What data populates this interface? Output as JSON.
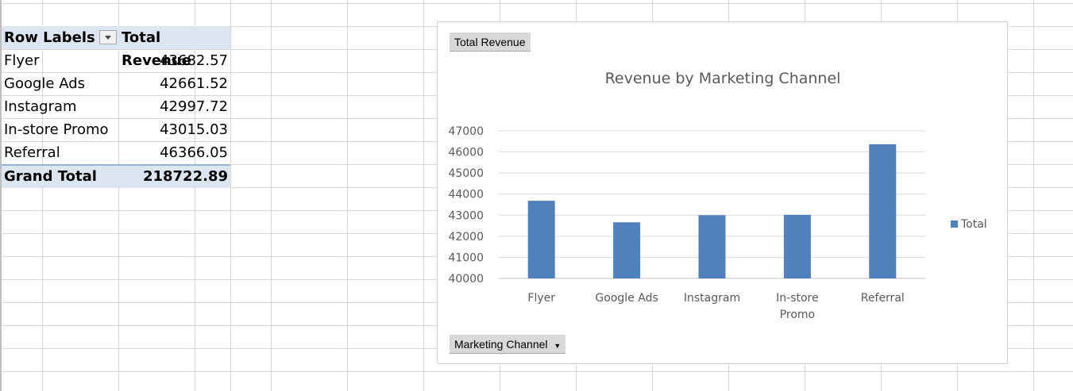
{
  "pivot": {
    "header": {
      "row_labels": "Row Labels",
      "value_header": "Total Revenue"
    },
    "rows": [
      {
        "label": "Flyer",
        "value": "43682.57"
      },
      {
        "label": "Google Ads",
        "value": "42661.52"
      },
      {
        "label": "Instagram",
        "value": "42997.72"
      },
      {
        "label": "In-store Promo",
        "value": "43015.03"
      },
      {
        "label": "Referral",
        "value": "46366.05"
      }
    ],
    "grand_total": {
      "label": "Grand Total",
      "value": "218722.89"
    }
  },
  "chart": {
    "value_field_button": "Total Revenue",
    "axis_field_button": "Marketing Channel",
    "bar_color": "#4f81bd"
  },
  "chart_data": {
    "type": "bar",
    "title": "Revenue by Marketing Channel",
    "categories": [
      "Flyer",
      "Google Ads",
      "Instagram",
      "In-store Promo",
      "Referral"
    ],
    "series": [
      {
        "name": "Total",
        "values": [
          43682.57,
          42661.52,
          42997.72,
          43015.03,
          46366.05
        ]
      }
    ],
    "ylim": [
      40000,
      47000
    ],
    "yticks": [
      "40000",
      "41000",
      "42000",
      "43000",
      "44000",
      "45000",
      "46000",
      "47000"
    ],
    "grid": true,
    "legend": "right"
  }
}
